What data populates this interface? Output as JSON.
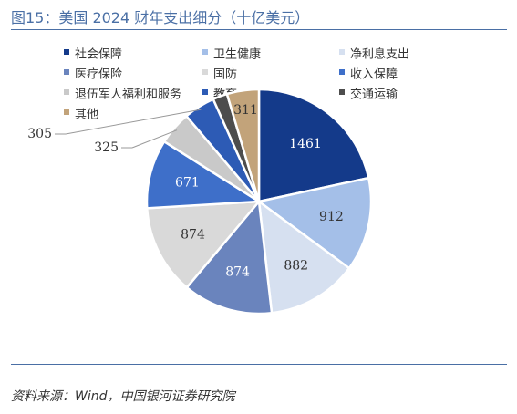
{
  "figure": {
    "title": "图15：美国 2024 财年支出细分（十亿美元）",
    "source": "资料来源：Wind，中国银河证券研究院"
  },
  "chart_data": {
    "type": "pie",
    "legend_position": "top-left",
    "series": [
      {
        "name": "社会保障",
        "value": 1461,
        "color": "#143a8a"
      },
      {
        "name": "卫生健康",
        "value": 912,
        "color": "#a4bfe8"
      },
      {
        "name": "净利息支出",
        "value": 882,
        "color": "#d6e0f0"
      },
      {
        "name": "医疗保险",
        "value": 874,
        "color": "#6a84bd"
      },
      {
        "name": "国防",
        "value": 874,
        "color": "#d9d9d9"
      },
      {
        "name": "收入保障",
        "value": 671,
        "color": "#3e6fc9"
      },
      {
        "name": "退伍军人福利和服务",
        "value": 325,
        "color": "#c9c9c9"
      },
      {
        "name": "教育",
        "value": 305,
        "color": "#2d5bb5"
      },
      {
        "name": "交通运输",
        "value": 141,
        "color": "#4d4d4d"
      },
      {
        "name": "其他",
        "value": 311,
        "color": "#c2a37a"
      }
    ]
  }
}
